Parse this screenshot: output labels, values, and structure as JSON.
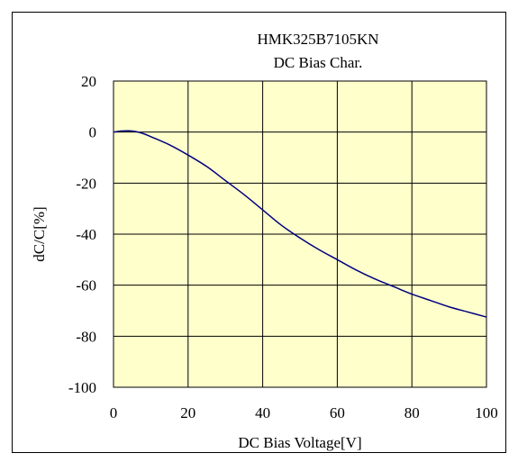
{
  "chart_data": {
    "type": "line",
    "title": "HMK325B7105KN",
    "subtitle": "DC Bias Char.",
    "xlabel": "DC Bias Voltage[V]",
    "ylabel": "dC/C[%]",
    "xlim": [
      0,
      100
    ],
    "ylim": [
      -100,
      20
    ],
    "xticks": [
      "0",
      "20",
      "40",
      "60",
      "80",
      "100"
    ],
    "yticks": [
      "20",
      "0",
      "-20",
      "-40",
      "-60",
      "-80",
      "-100"
    ],
    "grid": true,
    "legend": "none",
    "series": [
      {
        "x": [
          0,
          2,
          4,
          6,
          8,
          10,
          15,
          20,
          25,
          30,
          35,
          40,
          45,
          50,
          55,
          60,
          65,
          70,
          75,
          80,
          85,
          90,
          95,
          100
        ],
        "y": [
          0,
          0.4,
          0.5,
          0.2,
          -0.6,
          -1.8,
          -5.0,
          -9.0,
          -13.5,
          -19.0,
          -24.5,
          -30.5,
          -36.5,
          -41.5,
          -46.0,
          -50.0,
          -54.0,
          -57.5,
          -60.5,
          -63.5,
          -66.0,
          -68.5,
          -70.5,
          -72.5
        ]
      }
    ],
    "colors": {
      "plot_background": "#FFFFCC",
      "line": "#000080",
      "grid": "#000000"
    }
  }
}
